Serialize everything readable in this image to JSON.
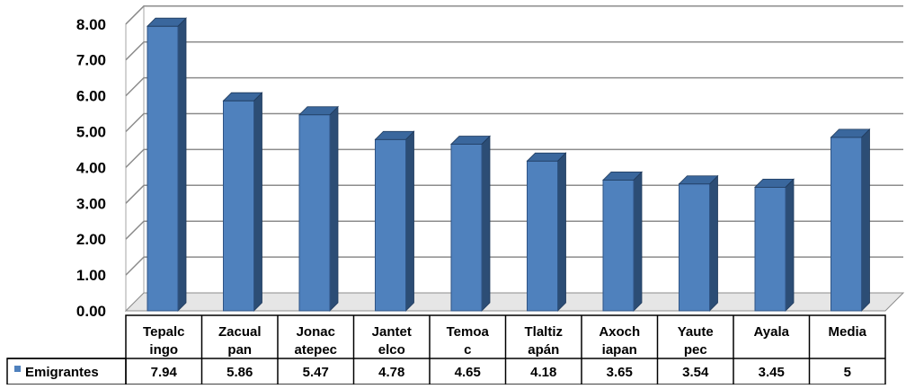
{
  "chart_data": {
    "type": "bar",
    "style": "3d-column-with-data-table",
    "categories": [
      [
        "Tepalc",
        "ingo"
      ],
      [
        "Zacual",
        "pan"
      ],
      [
        "Jonac",
        "atepec"
      ],
      [
        "Jantet",
        "elco"
      ],
      [
        "Temoa",
        "c"
      ],
      [
        "Tlaltiz",
        "apán"
      ],
      [
        "Axoch",
        "iapan"
      ],
      [
        "Yaute",
        "pec"
      ],
      [
        "Ayala"
      ],
      [
        "Media"
      ]
    ],
    "series": [
      {
        "name": "Emigrantes",
        "color": "#4F81BD",
        "values": [
          7.94,
          5.86,
          5.47,
          4.78,
          4.65,
          4.18,
          3.65,
          3.54,
          3.45,
          4.84
        ],
        "table_labels": [
          "7.94",
          "5.86",
          "5.47",
          "4.78",
          "4.65",
          "4.18",
          "3.65",
          "3.54",
          "3.45",
          "5"
        ]
      }
    ],
    "ylim": [
      0,
      8
    ],
    "yticks": [
      "0.00",
      "1.00",
      "2.00",
      "3.00",
      "4.00",
      "5.00",
      "6.00",
      "7.00",
      "8.00"
    ],
    "grid": true,
    "legend": "data-table-left"
  }
}
